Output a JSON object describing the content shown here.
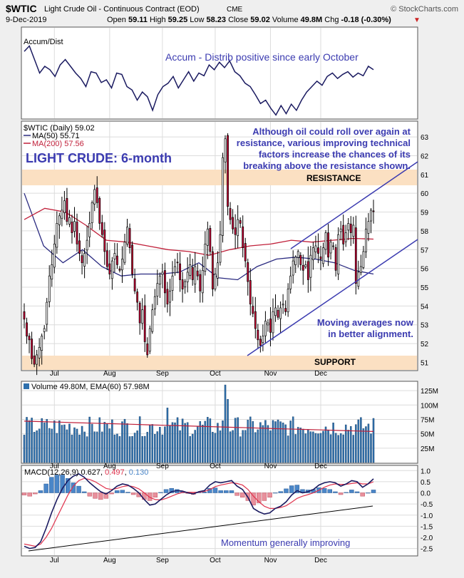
{
  "header": {
    "symbol": "$WTIC",
    "name": "Light Crude Oil - Continuous Contract (EOD)",
    "exchange": "CME",
    "watermark": "© StockCharts.com",
    "date": "9-Dec-2019",
    "quote": {
      "open_label": "Open",
      "open": "59.11",
      "high_label": "High",
      "high": "59.25",
      "low_label": "Low",
      "low": "58.23",
      "close_label": "Close",
      "close": "59.02",
      "volume_label": "Volume",
      "volume": "49.8M",
      "chg_label": "Chg",
      "chg": "-0.18 (-0.30%)"
    }
  },
  "colors": {
    "up": "#ffffff",
    "down": "#cc0033",
    "outline": "#000000",
    "ma50": "#2a2a80",
    "ma200": "#c0203a",
    "band": "#fbe0c2",
    "annotation": "#3b3bb0",
    "volume_bar": "#2e70ad",
    "macd_line": "#1a1a60",
    "signal_line": "#e0334d",
    "hist_pos": "#4a86c8",
    "hist_neg": "#e8909c"
  },
  "x_axis": {
    "months": [
      "Jul",
      "Aug",
      "Sep",
      "Oct",
      "Nov",
      "Dec"
    ]
  },
  "accum_panel": {
    "legend": "Accum/Dist",
    "annotation": "Accum - Distrib positive since early October"
  },
  "price_panel": {
    "legend_main": "$WTIC (Daily) 59.02",
    "legend_ma50": "MA(50) 55.71",
    "legend_ma200": "MA(200) 57.56",
    "title": "LIGHT CRUDE: 6-month",
    "annotation_top": [
      "Although oil could roll over again at",
      "resistance, various improving technical",
      "factors increase the chances of its",
      "breaking above the resistance shown."
    ],
    "annotation_bottom": [
      "Moving averages now",
      "in better alignment."
    ],
    "resistance_label": "RESISTANCE",
    "support_label": "SUPPORT",
    "y_ticks": [
      "63",
      "62",
      "61",
      "60",
      "59",
      "58",
      "57",
      "56",
      "55",
      "54",
      "53",
      "52",
      "51"
    ],
    "y_range": [
      50.6,
      63.8
    ]
  },
  "volume_panel": {
    "legend": "Volume 49.80M, EMA(60) 57.98M",
    "y_ticks": [
      "125M",
      "100M",
      "75M",
      "50M",
      "25M"
    ],
    "y_range": [
      0,
      140
    ]
  },
  "macd_panel": {
    "legend_prefix": "MACD(12,26,9)",
    "macd": "0.627",
    "signal": "0.497",
    "hist": "0.130",
    "annotation": "Momentum generally improving",
    "y_ticks": [
      "1.0",
      "0.5",
      "0.0",
      "-0.5",
      "-1.0",
      "-1.5",
      "-2.0",
      "-2.5"
    ],
    "y_range": [
      -2.8,
      1.2
    ]
  },
  "chart_data": {
    "type": "candlestick",
    "title": "LIGHT CRUDE: 6-month",
    "series": [
      {
        "name": "$WTIC (Daily)",
        "close": [
          53.3,
          52.4,
          52.2,
          51.2,
          50.9,
          51.4,
          51.8,
          52.4,
          52.8,
          54.2,
          55.6,
          56.2,
          57.3,
          58.4,
          58.8,
          59.1,
          59.6,
          58.5,
          58.7,
          57.9,
          58.5,
          57.3,
          56.8,
          56.3,
          56.8,
          57.5,
          58.4,
          59.5,
          60.2,
          59.5,
          58.4,
          57.8,
          56.9,
          56.1,
          55.7,
          56.4,
          56.8,
          56.2,
          55.9,
          56.5,
          57.4,
          58.2,
          57.1,
          55.7,
          54.8,
          54.2,
          53.1,
          53.8,
          52.1,
          51.4,
          52.8,
          53.8,
          54.5,
          55.2,
          55.6,
          55.8,
          54.7,
          54.1,
          54.8,
          55.6,
          56.1,
          56.3,
          55.4,
          54.9,
          55.3,
          55.8,
          56.2,
          55.4,
          56.1,
          55.6,
          54.8,
          55.9,
          57.3,
          58.1,
          56.9,
          54.9,
          55.7,
          56.3,
          57.8,
          61.9,
          62.9,
          59.3,
          58.6,
          58.1,
          57.8,
          58.6,
          58.4,
          57.1,
          56.4,
          55.3,
          54.1,
          53.6,
          52.8,
          52.2,
          51.9,
          52.4,
          53.2,
          53.1,
          52.6,
          53.7,
          53.9,
          53.4,
          53.9,
          54.1,
          53.7,
          54.9,
          55.6,
          56.4,
          56.6,
          56.9,
          56.2,
          55.9,
          56.2,
          55.4,
          56.7,
          57.1,
          57.2,
          56.8,
          56.5,
          57.1,
          57.9,
          56.6,
          57.4,
          57.2,
          55.9,
          57.8,
          58.1,
          57.3,
          57.9,
          58.4,
          57.9,
          58.3,
          55.2,
          55.8,
          56.1,
          56.9,
          58.1,
          58.5,
          59.1,
          59.02
        ]
      },
      {
        "name": "MA(50)",
        "values": [
          60.0,
          57.2,
          56.3,
          57.0,
          56.1,
          55.6,
          55.7,
          55.7,
          55.8,
          56.3,
          55.5,
          55.4,
          56.1,
          56.5,
          56.6,
          56.5,
          56.3,
          55.9,
          55.7
        ]
      },
      {
        "name": "MA(200)",
        "values": [
          58.6,
          59.2,
          59.0,
          58.3,
          57.5,
          57.4,
          57.2,
          57.0,
          56.9,
          56.7,
          57.0,
          57.2,
          57.3,
          57.5,
          57.4,
          57.5,
          57.6,
          57.56
        ]
      }
    ],
    "volume_series": [
      {
        "name": "Volume",
        "ema_name": "EMA(60)"
      }
    ],
    "macd_series": [
      {
        "name": "MACD(12,26,9)"
      }
    ],
    "ylim": [
      50.6,
      63.8
    ]
  }
}
